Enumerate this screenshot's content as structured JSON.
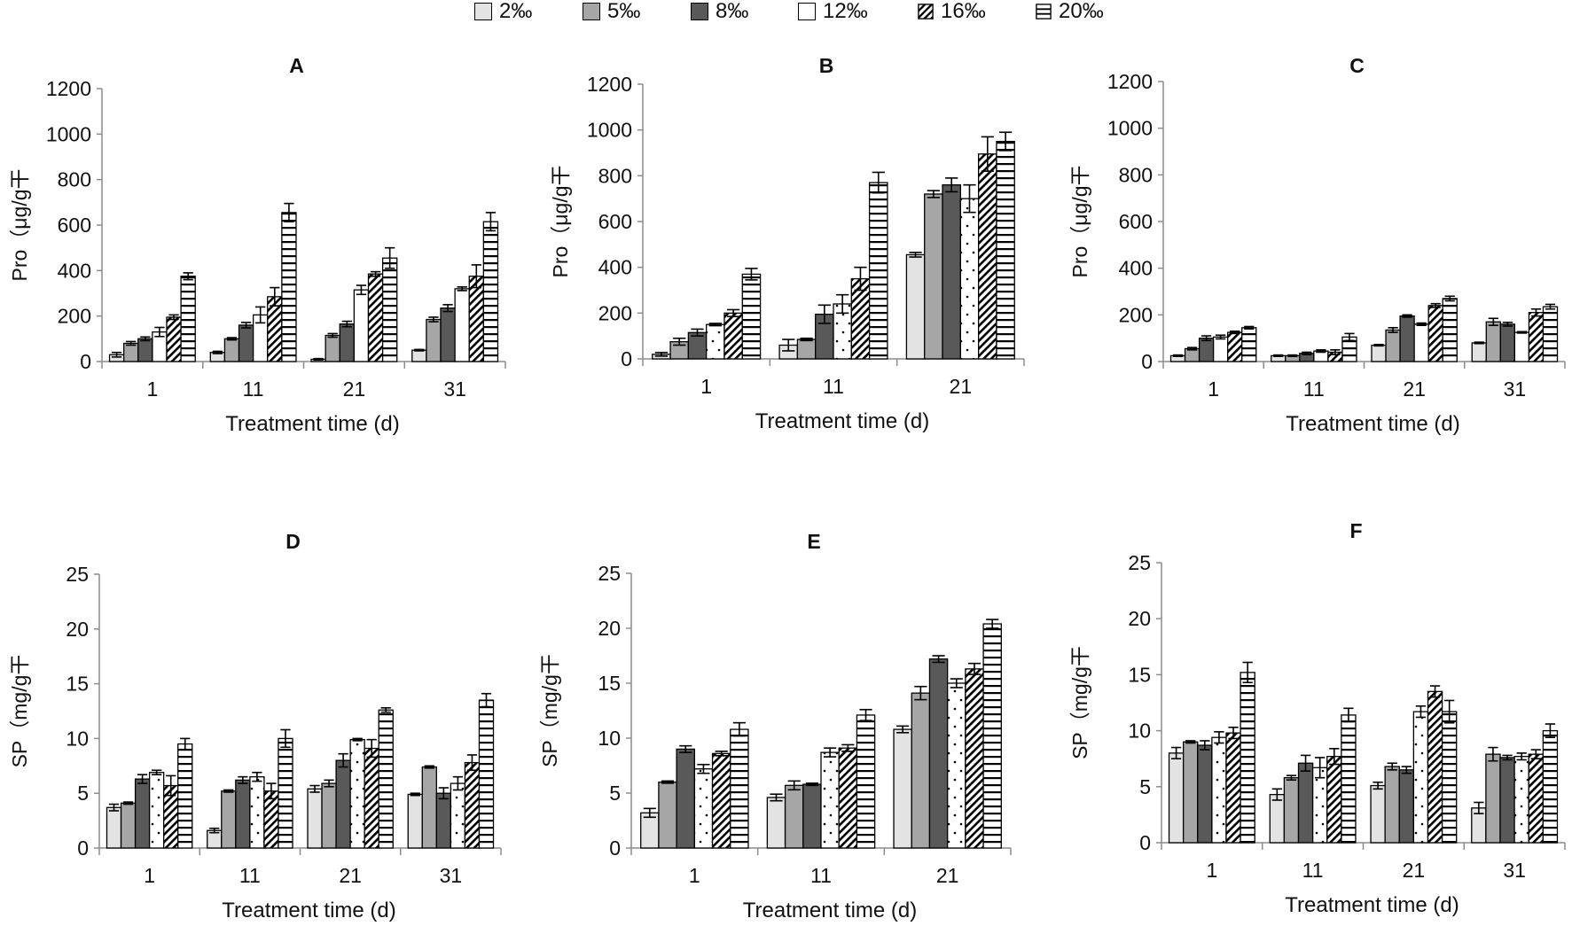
{
  "legend": {
    "items": [
      {
        "label": "2‰",
        "pattern": "p2"
      },
      {
        "label": "5‰",
        "pattern": "p5"
      },
      {
        "label": "8‰",
        "pattern": "p8"
      },
      {
        "label": "12‰",
        "pattern": "p12"
      },
      {
        "label": "16‰",
        "pattern": "p16"
      },
      {
        "label": "20‰",
        "pattern": "p20"
      }
    ]
  },
  "colors": {
    "c2": "#e3e3e3",
    "c5": "#a6a6a6",
    "c8": "#595959",
    "c12": "#ffffff",
    "stroke": "#000000",
    "axis": "#8c8c8c"
  },
  "chart_data": [
    {
      "id": "A",
      "type": "bar",
      "title": "A",
      "ylabel": "Pro（μg/g干",
      "xlabel": "Treatment time (d)",
      "ylim": [
        0,
        1200
      ],
      "yticks": [
        0,
        200,
        400,
        600,
        800,
        1000,
        1200
      ],
      "categories": [
        "1",
        "11",
        "21",
        "31"
      ],
      "series": [
        {
          "name": "2‰",
          "values": [
            30,
            40,
            10,
            50
          ],
          "errors": [
            10,
            5,
            3,
            3
          ]
        },
        {
          "name": "5‰",
          "values": [
            80,
            100,
            115,
            185
          ],
          "errors": [
            8,
            5,
            8,
            10
          ]
        },
        {
          "name": "8‰",
          "values": [
            100,
            160,
            165,
            235
          ],
          "errors": [
            8,
            12,
            12,
            15
          ]
        },
        {
          "name": "12‰",
          "values": [
            130,
            205,
            315,
            320
          ],
          "errors": [
            20,
            35,
            20,
            8
          ]
        },
        {
          "name": "16‰",
          "values": [
            195,
            285,
            385,
            375
          ],
          "errors": [
            10,
            40,
            10,
            50
          ]
        },
        {
          "name": "20‰",
          "values": [
            375,
            655,
            455,
            615
          ],
          "errors": [
            15,
            40,
            45,
            40
          ]
        }
      ]
    },
    {
      "id": "B",
      "type": "bar",
      "title": "B",
      "ylabel": "Pro（μg/g干",
      "xlabel": "Treatment time (d)",
      "ylim": [
        0,
        1200
      ],
      "yticks": [
        0,
        200,
        400,
        600,
        800,
        1000,
        1200
      ],
      "categories": [
        "1",
        "11",
        "21"
      ],
      "series": [
        {
          "name": "2‰",
          "values": [
            20,
            60,
            455
          ],
          "errors": [
            8,
            25,
            10
          ]
        },
        {
          "name": "5‰",
          "values": [
            75,
            85,
            720
          ],
          "errors": [
            15,
            5,
            15
          ]
        },
        {
          "name": "8‰",
          "values": [
            115,
            195,
            760
          ],
          "errors": [
            15,
            40,
            30
          ]
        },
        {
          "name": "12‰",
          "values": [
            150,
            240,
            700
          ],
          "errors": [
            5,
            40,
            60
          ]
        },
        {
          "name": "16‰",
          "values": [
            200,
            350,
            895
          ],
          "errors": [
            15,
            50,
            75
          ]
        },
        {
          "name": "20‰",
          "values": [
            370,
            770,
            950
          ],
          "errors": [
            25,
            45,
            40
          ]
        }
      ]
    },
    {
      "id": "C",
      "type": "bar",
      "title": "C",
      "ylabel": "Pro（μg/g干",
      "xlabel": "Treatment time (d)",
      "ylim": [
        0,
        1200
      ],
      "yticks": [
        0,
        200,
        400,
        600,
        800,
        1000,
        1200
      ],
      "categories": [
        "1",
        "11",
        "21",
        "31"
      ],
      "series": [
        {
          "name": "2‰",
          "values": [
            25,
            25,
            70,
            80
          ],
          "errors": [
            3,
            3,
            3,
            3
          ]
        },
        {
          "name": "5‰",
          "values": [
            55,
            25,
            135,
            170
          ],
          "errors": [
            5,
            3,
            10,
            15
          ]
        },
        {
          "name": "8‰",
          "values": [
            100,
            35,
            195,
            160
          ],
          "errors": [
            10,
            5,
            5,
            8
          ]
        },
        {
          "name": "12‰",
          "values": [
            105,
            45,
            160,
            125
          ],
          "errors": [
            8,
            5,
            5,
            3
          ]
        },
        {
          "name": "16‰",
          "values": [
            125,
            40,
            240,
            210
          ],
          "errors": [
            5,
            10,
            8,
            15
          ]
        },
        {
          "name": "20‰",
          "values": [
            145,
            105,
            270,
            235
          ],
          "errors": [
            5,
            15,
            10,
            10
          ]
        }
      ]
    },
    {
      "id": "D",
      "type": "bar",
      "title": "D",
      "ylabel": "SP（mg/g干",
      "xlabel": "Treatment time (d)",
      "ylim": [
        0,
        25
      ],
      "yticks": [
        0,
        5,
        10,
        15,
        20,
        25
      ],
      "categories": [
        "1",
        "11",
        "21",
        "31"
      ],
      "series": [
        {
          "name": "2‰",
          "values": [
            3.7,
            1.6,
            5.4,
            4.9
          ],
          "errors": [
            0.3,
            0.2,
            0.3,
            0.1
          ]
        },
        {
          "name": "5‰",
          "values": [
            4.1,
            5.2,
            5.9,
            7.4
          ],
          "errors": [
            0.1,
            0.1,
            0.3,
            0.1
          ]
        },
        {
          "name": "8‰",
          "values": [
            6.3,
            6.2,
            8.0,
            5.0
          ],
          "errors": [
            0.4,
            0.3,
            0.6,
            0.5
          ]
        },
        {
          "name": "12‰",
          "values": [
            6.9,
            6.5,
            9.9,
            5.9
          ],
          "errors": [
            0.2,
            0.4,
            0.1,
            0.6
          ]
        },
        {
          "name": "16‰",
          "values": [
            5.7,
            5.2,
            9.1,
            7.8
          ],
          "errors": [
            0.9,
            0.7,
            0.8,
            0.7
          ]
        },
        {
          "name": "20‰",
          "values": [
            9.5,
            10.0,
            12.6,
            13.5
          ],
          "errors": [
            0.5,
            0.8,
            0.2,
            0.6
          ]
        }
      ]
    },
    {
      "id": "E",
      "type": "bar",
      "title": "E",
      "ylabel": "SP（mg/g干",
      "xlabel": "Treatment time (d)",
      "ylim": [
        0,
        25
      ],
      "yticks": [
        0,
        5,
        10,
        15,
        20,
        25
      ],
      "categories": [
        "1",
        "11",
        "21"
      ],
      "series": [
        {
          "name": "2‰",
          "values": [
            3.2,
            4.6,
            10.8
          ],
          "errors": [
            0.4,
            0.3,
            0.3
          ]
        },
        {
          "name": "5‰",
          "values": [
            6.0,
            5.7,
            14.1
          ],
          "errors": [
            0.1,
            0.4,
            0.6
          ]
        },
        {
          "name": "8‰",
          "values": [
            9.0,
            5.8,
            17.2
          ],
          "errors": [
            0.3,
            0.1,
            0.3
          ]
        },
        {
          "name": "12‰",
          "values": [
            7.2,
            8.7,
            15.0
          ],
          "errors": [
            0.4,
            0.4,
            0.4
          ]
        },
        {
          "name": "16‰",
          "values": [
            8.6,
            9.1,
            16.3
          ],
          "errors": [
            0.2,
            0.3,
            0.5
          ]
        },
        {
          "name": "20‰",
          "values": [
            10.8,
            12.1,
            20.4
          ],
          "errors": [
            0.6,
            0.5,
            0.4
          ]
        }
      ]
    },
    {
      "id": "F",
      "type": "bar",
      "title": "F",
      "ylabel": "SP（mg/g干",
      "xlabel": "Treatment time (d)",
      "ylim": [
        0,
        25
      ],
      "yticks": [
        0,
        5,
        10,
        15,
        20,
        25
      ],
      "categories": [
        "1",
        "11",
        "21",
        "31"
      ],
      "series": [
        {
          "name": "2‰",
          "values": [
            8.0,
            4.3,
            5.1,
            3.1
          ],
          "errors": [
            0.5,
            0.5,
            0.3,
            0.5
          ]
        },
        {
          "name": "5‰",
          "values": [
            9.0,
            5.8,
            6.8,
            7.9
          ],
          "errors": [
            0.1,
            0.2,
            0.3,
            0.6
          ]
        },
        {
          "name": "8‰",
          "values": [
            8.7,
            7.1,
            6.5,
            7.6
          ],
          "errors": [
            0.4,
            0.7,
            0.3,
            0.2
          ]
        },
        {
          "name": "12‰",
          "values": [
            9.4,
            6.7,
            11.7,
            7.7
          ],
          "errors": [
            0.5,
            0.9,
            0.5,
            0.3
          ]
        },
        {
          "name": "16‰",
          "values": [
            9.8,
            7.7,
            13.5,
            7.9
          ],
          "errors": [
            0.5,
            0.7,
            0.5,
            0.4
          ]
        },
        {
          "name": "20‰",
          "values": [
            15.2,
            11.4,
            11.7,
            10.0
          ],
          "errors": [
            0.9,
            0.6,
            1.0,
            0.6
          ]
        }
      ]
    }
  ]
}
